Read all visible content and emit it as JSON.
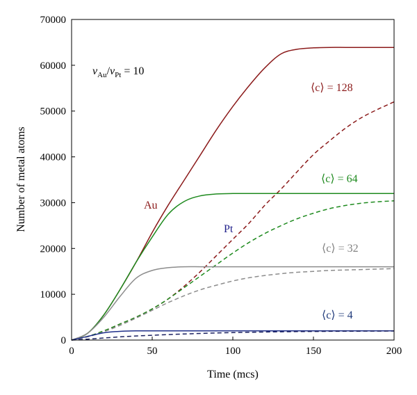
{
  "chart_data": {
    "type": "line",
    "xlabel": "Time (mcs)",
    "ylabel": "Number of metal atoms",
    "xlim": [
      0,
      200
    ],
    "ylim": [
      0,
      70000
    ],
    "x_ticks": [
      "0",
      "50",
      "100",
      "150",
      "200"
    ],
    "y_ticks": [
      "0",
      "10000",
      "20000",
      "30000",
      "40000",
      "50000",
      "60000",
      "70000"
    ],
    "grid": false,
    "legend": "none",
    "ratio_label": {
      "v1": "v",
      "s1": "Au",
      "slash": "/",
      "v2": "v",
      "s2": "Pt",
      "rest": " = 10"
    },
    "annotations": [
      {
        "id": "c128",
        "text": "⟨c⟩ = 128",
        "color": "#8b1a1a"
      },
      {
        "id": "c64",
        "text": "⟨c⟩ = 64",
        "color": "#1e8a1e"
      },
      {
        "id": "c32",
        "text": "⟨c⟩ = 32",
        "color": "#808080"
      },
      {
        "id": "c4",
        "text": "⟨c⟩ = 4",
        "color": "#1f3a7a"
      },
      {
        "id": "au",
        "text": "Au",
        "color": "#8b1a1a"
      },
      {
        "id": "pt",
        "text": "Pt",
        "color": "#1f1f8a"
      }
    ],
    "series": [
      {
        "key": "au_c128",
        "color": "#8b1a1a",
        "dashed": false,
        "x": [
          0,
          10,
          20,
          30,
          40,
          50,
          60,
          70,
          80,
          90,
          100,
          110,
          120,
          130,
          140,
          150,
          160,
          170,
          180,
          190,
          200
        ],
        "y": [
          0,
          1500,
          5500,
          11000,
          17000,
          23500,
          29500,
          35000,
          40500,
          46000,
          51000,
          55500,
          59500,
          62500,
          63500,
          63800,
          63900,
          63900,
          63900,
          63900,
          63900
        ]
      },
      {
        "key": "pt_c128",
        "color": "#8b1a1a",
        "dashed": false,
        "dash": true,
        "x": [
          0,
          10,
          20,
          30,
          40,
          50,
          60,
          70,
          80,
          90,
          100,
          110,
          120,
          130,
          140,
          150,
          160,
          170,
          180,
          190,
          200
        ],
        "y": [
          0,
          800,
          2000,
          3500,
          5000,
          6800,
          9000,
          11800,
          15000,
          18500,
          22000,
          25500,
          29500,
          33000,
          36800,
          40500,
          43500,
          46300,
          48600,
          50400,
          52000
        ]
      },
      {
        "key": "au_c64",
        "color": "#1e8a1e",
        "dashed": false,
        "x": [
          0,
          10,
          20,
          30,
          40,
          50,
          60,
          70,
          80,
          90,
          100,
          110,
          120,
          130,
          140,
          150,
          160,
          170,
          180,
          190,
          200
        ],
        "y": [
          0,
          1500,
          5500,
          11000,
          17000,
          22500,
          27500,
          30300,
          31500,
          31900,
          32000,
          32000,
          32000,
          32000,
          32000,
          32000,
          32000,
          32000,
          32000,
          32000,
          32000
        ]
      },
      {
        "key": "pt_c64",
        "color": "#1e8a1e",
        "dash": true,
        "x": [
          0,
          10,
          20,
          30,
          40,
          50,
          60,
          70,
          80,
          90,
          100,
          110,
          120,
          130,
          140,
          150,
          160,
          170,
          180,
          190,
          200
        ],
        "y": [
          0,
          800,
          2000,
          3500,
          5000,
          6800,
          9000,
          11500,
          14000,
          16500,
          19000,
          21300,
          23300,
          25000,
          26500,
          27700,
          28700,
          29400,
          29900,
          30200,
          30400
        ]
      },
      {
        "key": "au_c32",
        "color": "#8c8c8c",
        "dash": false,
        "x": [
          0,
          10,
          20,
          30,
          40,
          50,
          60,
          70,
          80,
          90,
          100,
          110,
          120,
          130,
          140,
          150,
          160,
          170,
          180,
          190,
          200
        ],
        "y": [
          0,
          1500,
          5000,
          9500,
          13500,
          15200,
          15800,
          16000,
          16000,
          16000,
          16000,
          16000,
          16000,
          16000,
          16000,
          16000,
          16000,
          16000,
          16000,
          16000,
          16000
        ]
      },
      {
        "key": "pt_c32",
        "color": "#8c8c8c",
        "dash": true,
        "x": [
          0,
          10,
          20,
          30,
          40,
          50,
          60,
          70,
          80,
          90,
          100,
          110,
          120,
          130,
          140,
          150,
          160,
          170,
          180,
          190,
          200
        ],
        "y": [
          0,
          700,
          1800,
          3200,
          4800,
          6500,
          8200,
          9700,
          11000,
          12000,
          12900,
          13600,
          14100,
          14500,
          14800,
          15000,
          15200,
          15300,
          15400,
          15500,
          15600
        ]
      },
      {
        "key": "au_c4",
        "color": "#1f2f8a",
        "dash": false,
        "x": [
          0,
          10,
          20,
          30,
          40,
          50,
          60,
          70,
          80,
          90,
          100,
          110,
          120,
          130,
          140,
          150,
          160,
          170,
          180,
          190,
          200
        ],
        "y": [
          0,
          800,
          1600,
          1900,
          2000,
          2000,
          2000,
          2000,
          2000,
          2000,
          2000,
          2000,
          2000,
          2000,
          2000,
          2000,
          2000,
          2000,
          2000,
          2000,
          2000
        ]
      },
      {
        "key": "pt_c4",
        "color": "#1a2060",
        "dash": true,
        "x": [
          0,
          10,
          20,
          30,
          40,
          50,
          60,
          70,
          80,
          90,
          100,
          110,
          120,
          130,
          140,
          150,
          160,
          170,
          180,
          190,
          200
        ],
        "y": [
          0,
          200,
          450,
          700,
          900,
          1050,
          1200,
          1330,
          1450,
          1550,
          1630,
          1700,
          1760,
          1810,
          1850,
          1880,
          1910,
          1930,
          1950,
          1960,
          1970
        ]
      }
    ]
  }
}
